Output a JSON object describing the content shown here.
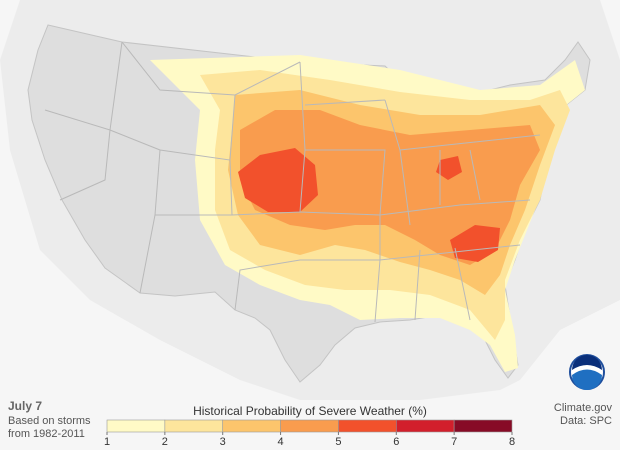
{
  "map": {
    "date": "July 7",
    "note_lines": [
      "Based on storms",
      "from 1982-2011"
    ],
    "legend": {
      "title": "Historical Probability of Severe Weather (%)",
      "ticks": [
        1,
        2,
        3,
        4,
        5,
        6,
        7,
        8
      ],
      "colors": [
        "#fffac6",
        "#fde59c",
        "#fcc56c",
        "#f99c4e",
        "#f2512c",
        "#d21f2c",
        "#870b26"
      ]
    },
    "credit": "Climate.gov",
    "source": "Data: SPC"
  }
}
